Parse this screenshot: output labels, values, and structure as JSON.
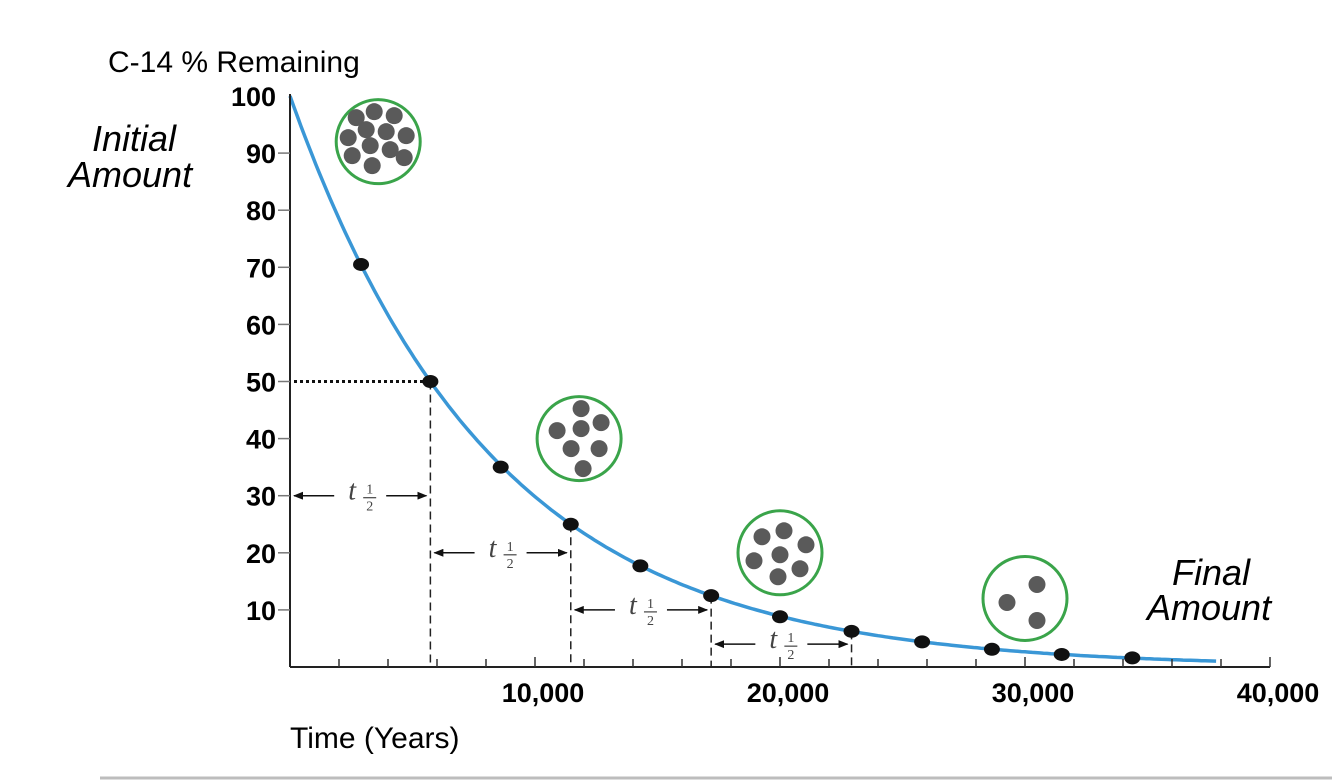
{
  "chart_data": {
    "type": "line",
    "ylabel": "C-14 % Remaining",
    "xlabel": "Time (Years)",
    "ylim": [
      0,
      100
    ],
    "xlim": [
      0,
      40000
    ],
    "y_ticks": [
      {
        "value": 100,
        "label": "100"
      },
      {
        "value": 90,
        "label": "90"
      },
      {
        "value": 80,
        "label": "80"
      },
      {
        "value": 70,
        "label": "70"
      },
      {
        "value": 60,
        "label": "60"
      },
      {
        "value": 50,
        "label": "50"
      },
      {
        "value": 40,
        "label": "40"
      },
      {
        "value": 30,
        "label": "30"
      },
      {
        "value": 20,
        "label": "20"
      },
      {
        "value": 10,
        "label": "10"
      }
    ],
    "x_ticks": [
      {
        "value": 10000,
        "label": "10,000"
      },
      {
        "value": 20000,
        "label": "20,000"
      },
      {
        "value": 30000,
        "label": "30,000"
      },
      {
        "value": 40000,
        "label": "40,000"
      }
    ],
    "series": [
      {
        "values_kind": "decay curve",
        "half_life_years": 5730,
        "color": "#3a97d6",
        "x_end": 37800
      }
    ],
    "points": [
      {
        "x": 2900,
        "y": 70.5
      },
      {
        "x": 5730,
        "y": 50
      },
      {
        "x": 8600,
        "y": 35
      },
      {
        "x": 11460,
        "y": 25
      },
      {
        "x": 14300,
        "y": 17.7
      },
      {
        "x": 17190,
        "y": 12.5
      },
      {
        "x": 20000,
        "y": 8.8
      },
      {
        "x": 22920,
        "y": 6.25
      },
      {
        "x": 25800,
        "y": 4.4
      },
      {
        "x": 28650,
        "y": 3.1
      },
      {
        "x": 31500,
        "y": 2.2
      },
      {
        "x": 34380,
        "y": 1.6
      }
    ],
    "half_life_markers": [
      {
        "from": 0,
        "to": 5730,
        "y": 30
      },
      {
        "from": 5730,
        "to": 11460,
        "y": 20
      },
      {
        "from": 11460,
        "to": 17190,
        "y": 10
      },
      {
        "from": 17190,
        "to": 22920,
        "y": 4
      }
    ],
    "half_life_symbol": {
      "t": "t",
      "num": "1",
      "den": "2"
    },
    "annotations": {
      "initial": [
        "Initial",
        "Amount"
      ],
      "final": [
        "Final",
        "Amount"
      ]
    },
    "atom_circles": [
      {
        "count": 12,
        "x": 3600,
        "y": 92
      },
      {
        "count": 7,
        "x": 11800,
        "y": 40
      },
      {
        "count": 7,
        "x": 20000,
        "y": 20
      },
      {
        "count": 3,
        "x": 30000,
        "y": 12
      }
    ],
    "colors": {
      "curve": "#3a97d6",
      "circle_outline": "#3aa44a",
      "atom": "#5a5a5a",
      "point": "#111111"
    }
  }
}
